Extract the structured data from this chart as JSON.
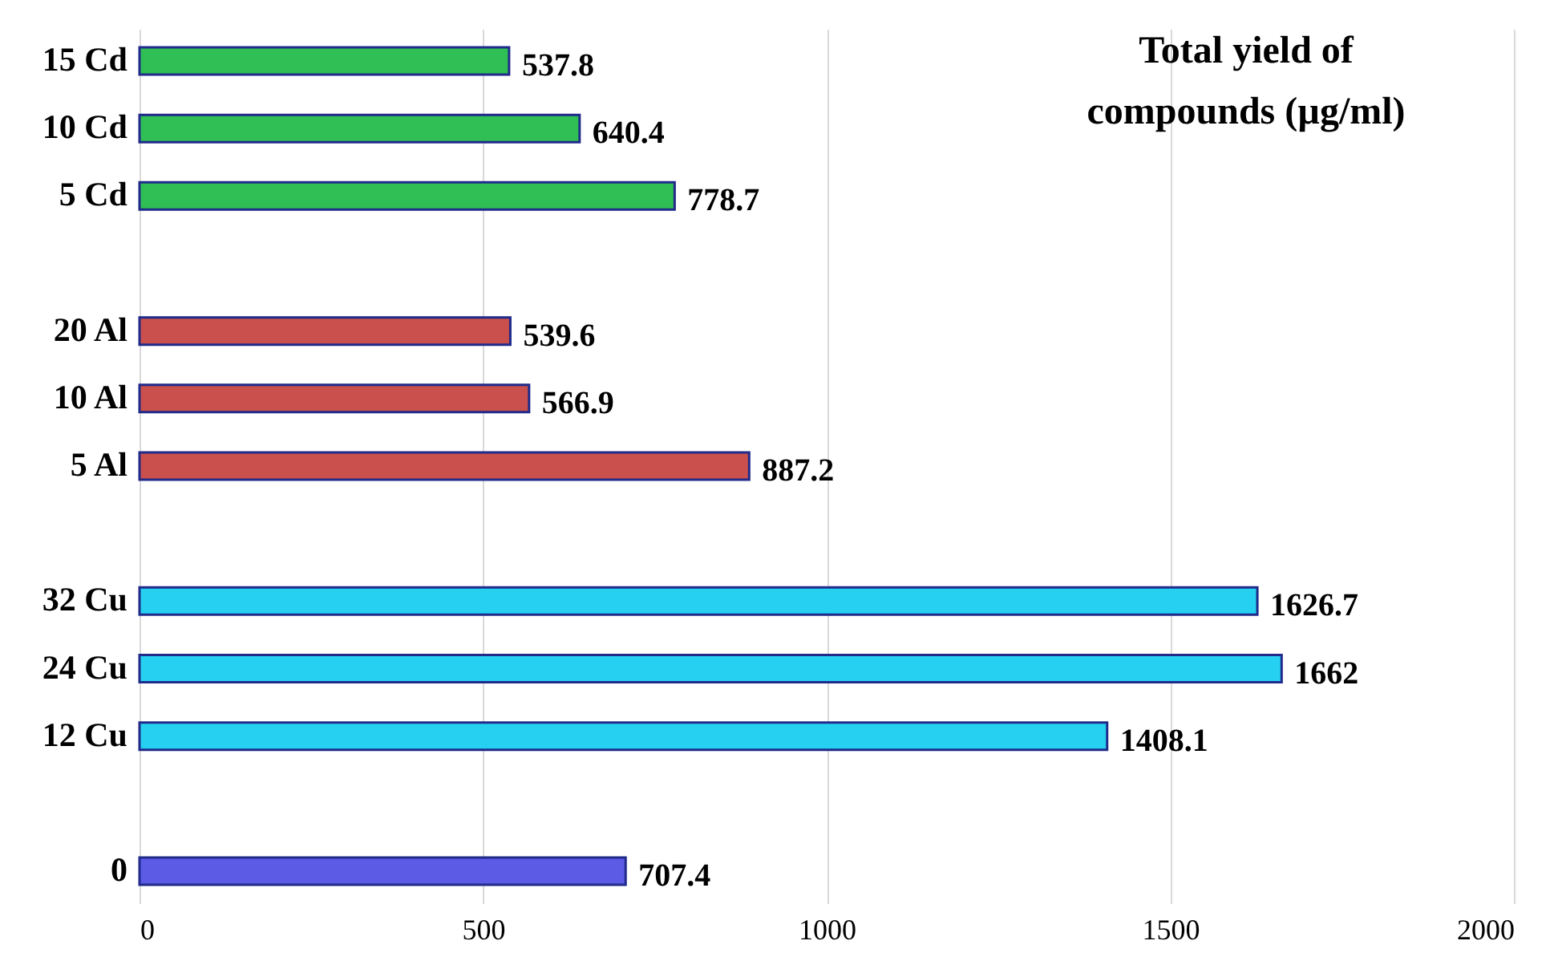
{
  "chart_data": {
    "type": "bar",
    "orientation": "horizontal",
    "title": "Total yield of\ncompounds (µg/ml)",
    "categories": [
      "15  Cd",
      "10  Cd",
      "5  Cd",
      null,
      "20  Al",
      "10  Al",
      "5  Al",
      null,
      "32  Cu",
      "24  Cu",
      "12  Cu",
      null,
      "0"
    ],
    "values": [
      537.8,
      640.4,
      778.7,
      null,
      539.6,
      566.9,
      887.2,
      null,
      1626.7,
      1662,
      1408.1,
      null,
      707.4
    ],
    "colors": [
      "#2fbf55",
      "#2fbf55",
      "#2fbf55",
      null,
      "#c9504c",
      "#c9504c",
      "#c9504c",
      null,
      "#25d0f0",
      "#25d0f0",
      "#25d0f0",
      null,
      "#5b5be6"
    ],
    "xlim": [
      0,
      2000
    ],
    "xticks": [
      0,
      500,
      1000,
      1500,
      2000
    ],
    "grid": "x",
    "data_labels": true
  }
}
